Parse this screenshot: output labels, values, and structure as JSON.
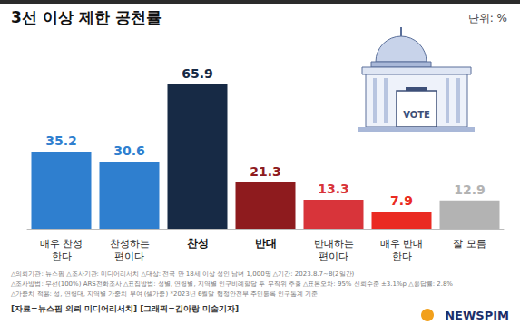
{
  "chart_data": {
    "type": "bar",
    "title": "3선 이상 제한 공천률",
    "subtitle": "단위: %",
    "categories": [
      "매우 찬성\n한다",
      "찬성하는\n편이다",
      "찬성",
      "반대",
      "반대하는\n편이다",
      "매우 반대\n한다",
      "잘 모름"
    ],
    "values": [
      35.2,
      30.6,
      65.9,
      21.3,
      13.3,
      7.9,
      12.9
    ],
    "colors": [
      "#2f7fcf",
      "#2f7fcf",
      "#172a45",
      "#8e1b1e",
      "#d8343a",
      "#ea2a22",
      "#b3b3b3"
    ],
    "ylim": [
      0,
      70
    ],
    "data_labels": true,
    "tick_labels": "x",
    "grid": false,
    "annotations": [
      "△의뢰기관: 뉴스핌 △조사기관: 미디어리서치 △대상: 전국 만 18세 이상 성인 남녀 1,000명 △기간: 2023.8.7~8(2일간)",
      "△조사방법: 무선(100%) ARS전화조사 △표집방법: 성별, 연령별, 지역별 인구비례할당 후 무작위 추출 △표본오차: 95% 신뢰수준 ±3.1%p △응답률: 2.8%",
      "△가중치 적용: 성, 연령대, 지역별 가중치 부여 (셀가중) *2023년 6월말 행정안전부 주민등록 인구통계 기준"
    ],
    "source": "[자료=뉴스핌 의뢰 미디어리서치] [그래픽=김아랑 미술기자]",
    "logo": "NEWSPIM",
    "illustration_text": "VOTE"
  }
}
